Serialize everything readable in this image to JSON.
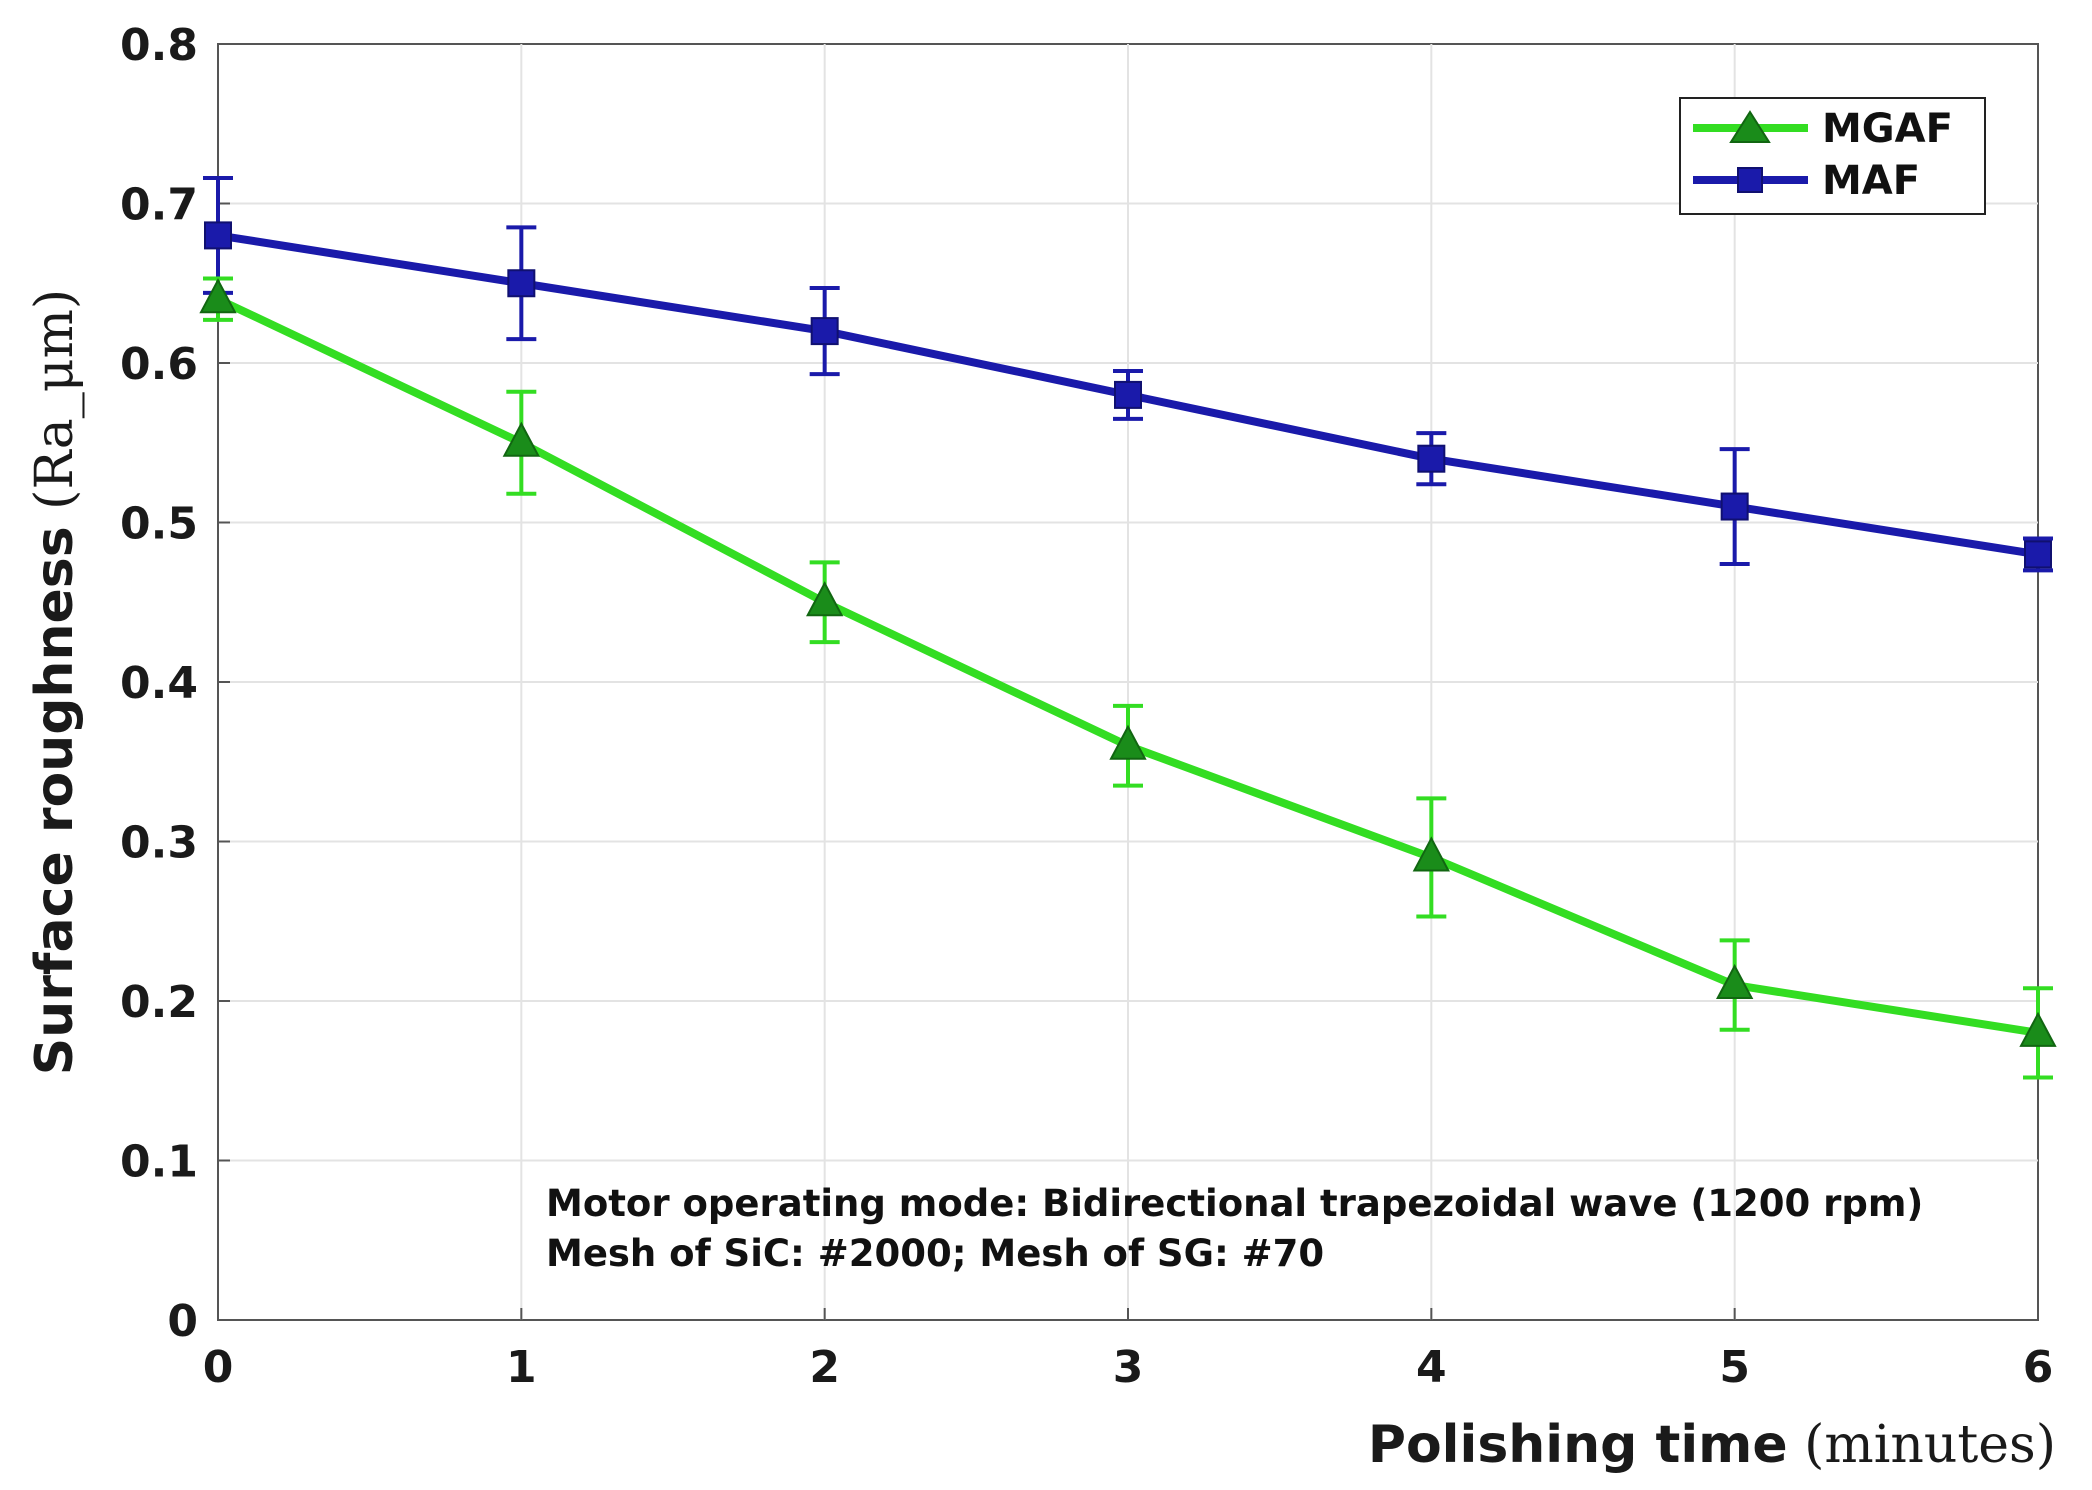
{
  "chart_data": {
    "type": "line",
    "title": "",
    "xlabel": {
      "bold": "Polishing time",
      "unit": " (minutes)"
    },
    "ylabel": {
      "bold": "Surface roughness",
      "unit": " (Ra_μm)"
    },
    "x": [
      0,
      1,
      2,
      3,
      4,
      5,
      6
    ],
    "xlim": [
      0,
      6
    ],
    "ylim": [
      0,
      0.8
    ],
    "x_ticks": [
      "0",
      "1",
      "2",
      "3",
      "4",
      "5",
      "6"
    ],
    "y_ticks": [
      "0",
      "0.1",
      "0.2",
      "0.3",
      "0.4",
      "0.5",
      "0.6",
      "0.7",
      "0.8"
    ],
    "grid": true,
    "legend_position": "top-right",
    "series": [
      {
        "name": "MGAF",
        "marker": "triangle",
        "color": "#33dd22",
        "marker_color": "#1a8c1a",
        "values": [
          0.64,
          0.55,
          0.45,
          0.36,
          0.29,
          0.21,
          0.18
        ],
        "errors": [
          0.013,
          0.032,
          0.025,
          0.025,
          0.037,
          0.028,
          0.028
        ]
      },
      {
        "name": "MAF",
        "marker": "square",
        "color": "#1a1aaa",
        "marker_color": "#1a1aaa",
        "values": [
          0.68,
          0.65,
          0.62,
          0.58,
          0.54,
          0.51,
          0.48
        ],
        "errors": [
          0.036,
          0.035,
          0.027,
          0.015,
          0.016,
          0.036,
          0.01
        ]
      }
    ],
    "annotations": [
      "Motor operating mode: Bidirectional trapezoidal wave (1200 rpm)",
      "Mesh of SiC: #2000; Mesh of SG: #70"
    ]
  }
}
